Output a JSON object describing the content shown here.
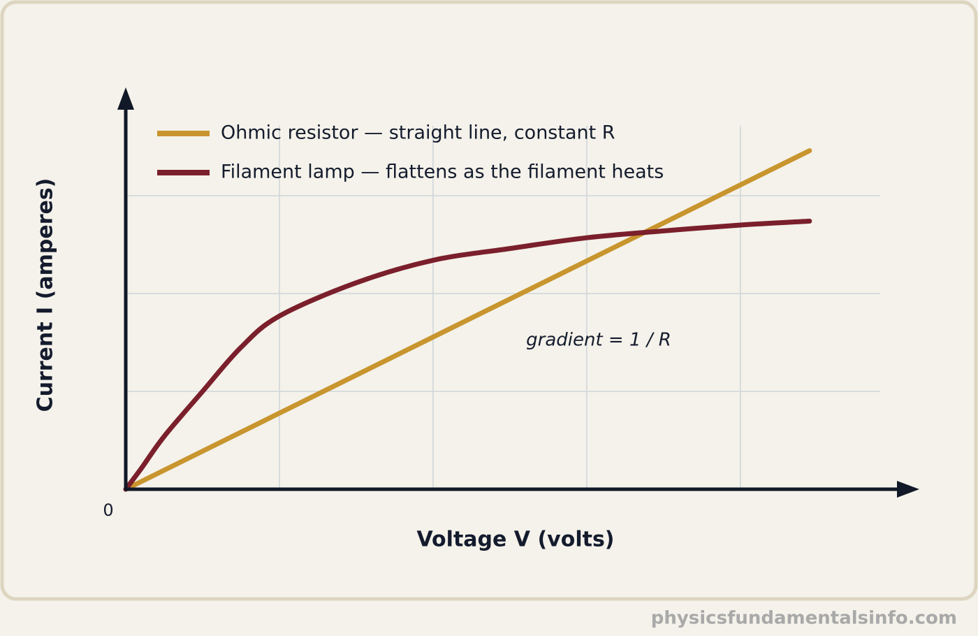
{
  "chart_data": {
    "type": "line",
    "x_label": "Voltage V (volts)",
    "y_label": "Current I (amperes)",
    "annotation": "gradient = 1 / R",
    "series": [
      {
        "name": "Ohmic resistor — straight line, constant R",
        "color": "#c8952e",
        "x": [
          0,
          4.45
        ],
        "values": [
          0,
          3.46
        ]
      },
      {
        "name": "Filament lamp — flattens as the filament heats",
        "color": "#7a1f2b",
        "x": [
          0,
          0.1,
          0.25,
          0.5,
          0.75,
          1,
          1.5,
          2,
          2.5,
          3,
          3.5,
          4,
          4.45
        ],
        "values": [
          0,
          0.21,
          0.54,
          1.0,
          1.45,
          1.77,
          2.11,
          2.34,
          2.46,
          2.57,
          2.64,
          2.7,
          2.74
        ]
      }
    ],
    "xlim": [
      0,
      5.16
    ],
    "ylim": [
      0,
      4.1
    ],
    "xticks": [
      0
    ],
    "xgrid": [
      1,
      2,
      3,
      4
    ],
    "ygrid": [
      1,
      2,
      3
    ],
    "grid": true
  },
  "footer": {
    "watermark": "physicsfundamentalsinfo.com"
  }
}
